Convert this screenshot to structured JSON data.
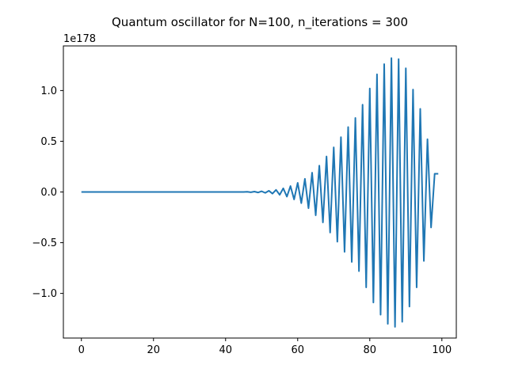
{
  "chart_data": {
    "type": "line",
    "title": "Quantum oscillator for N=100, n_iterations = 300",
    "xlabel": "",
    "ylabel": "",
    "y_offset_label": "1e178",
    "xlim": [
      -5,
      104
    ],
    "ylim": [
      -1.44,
      1.44
    ],
    "xticks": [
      0,
      20,
      40,
      60,
      80,
      100
    ],
    "xtick_labels": [
      "0",
      "20",
      "40",
      "60",
      "80",
      "100"
    ],
    "yticks": [
      -1.0,
      -0.5,
      0.0,
      0.5,
      1.0
    ],
    "ytick_labels": [
      "−1.0",
      "−0.5",
      "0.0",
      "0.5",
      "1.0"
    ],
    "grid": false,
    "legend": "none",
    "series": [
      {
        "color": "#1f77b4",
        "x": [
          0,
          1,
          2,
          3,
          4,
          5,
          6,
          7,
          8,
          9,
          10,
          11,
          12,
          13,
          14,
          15,
          16,
          17,
          18,
          19,
          20,
          21,
          22,
          23,
          24,
          25,
          26,
          27,
          28,
          29,
          30,
          31,
          32,
          33,
          34,
          35,
          36,
          37,
          38,
          39,
          40,
          41,
          42,
          43,
          44,
          45,
          46,
          47,
          48,
          49,
          50,
          51,
          52,
          53,
          54,
          55,
          56,
          57,
          58,
          59,
          60,
          61,
          62,
          63,
          64,
          65,
          66,
          67,
          68,
          69,
          70,
          71,
          72,
          73,
          74,
          75,
          76,
          77,
          78,
          79,
          80,
          81,
          82,
          83,
          84,
          85,
          86,
          87,
          88,
          89,
          90,
          91,
          92,
          93,
          94,
          95,
          96,
          97,
          98,
          99
        ],
        "values": [
          0,
          0,
          0,
          0,
          0,
          0,
          0,
          0,
          0,
          0,
          0,
          0,
          0,
          0,
          0,
          0,
          0,
          0,
          0,
          0,
          0,
          0,
          0,
          0,
          0,
          0,
          0,
          0,
          0,
          0,
          0,
          0,
          0,
          0,
          0,
          0,
          0,
          0,
          0,
          0,
          0,
          0,
          0,
          0,
          0,
          0,
          0.002,
          -0.003,
          0.004,
          -0.005,
          0.007,
          -0.009,
          0.012,
          -0.016,
          0.021,
          -0.028,
          0.036,
          -0.046,
          0.058,
          -0.073,
          0.09,
          -0.11,
          0.13,
          -0.16,
          0.19,
          -0.23,
          0.26,
          -0.3,
          0.35,
          -0.4,
          0.44,
          -0.49,
          0.54,
          -0.59,
          0.64,
          -0.69,
          0.73,
          -0.78,
          0.86,
          -0.94,
          1.02,
          -1.09,
          1.16,
          -1.21,
          1.26,
          -1.3,
          1.32,
          -1.33,
          1.31,
          -1.28,
          1.22,
          -1.13,
          1.01,
          -0.94,
          0.82,
          -0.68,
          0.52,
          -0.35,
          0.18,
          0.18
        ]
      }
    ]
  }
}
